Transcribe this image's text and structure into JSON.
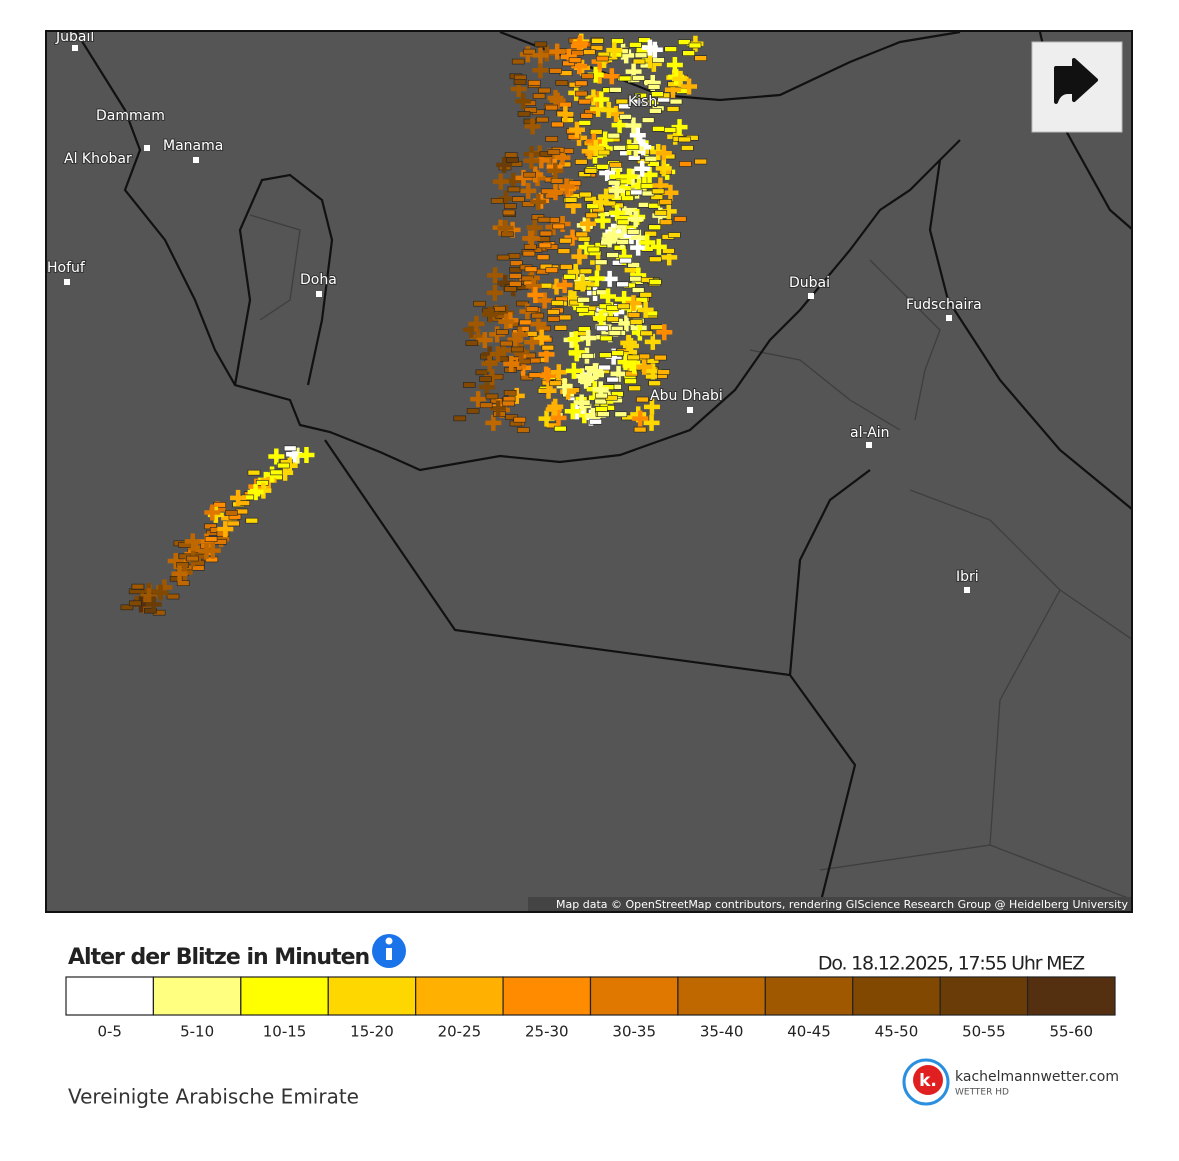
{
  "map": {
    "cities": [
      "Jubail",
      "Dammam",
      "Al Khobar",
      "Manama",
      "Hofuf",
      "Doha",
      "Kish",
      "Dubai",
      "Fudschaira",
      "Abu Dhabi",
      "al-Ain",
      "Ibri"
    ],
    "attribution": "Map data © OpenStreetMap contributors, rendering GIScience Research Group @ Heidelberg University"
  },
  "legend": {
    "title": "Alter der Blitze in Minuten",
    "timestamp": "Do. 18.12.2025, 17:55 Uhr MEZ",
    "items": [
      {
        "label": "0-5",
        "color": "#ffffff"
      },
      {
        "label": "5-10",
        "color": "#ffff80"
      },
      {
        "label": "10-15",
        "color": "#ffff00"
      },
      {
        "label": "15-20",
        "color": "#ffd700"
      },
      {
        "label": "20-25",
        "color": "#ffb000"
      },
      {
        "label": "25-30",
        "color": "#ff8c00"
      },
      {
        "label": "30-35",
        "color": "#e07800"
      },
      {
        "label": "35-40",
        "color": "#c06800"
      },
      {
        "label": "40-45",
        "color": "#a05800"
      },
      {
        "label": "45-50",
        "color": "#804800"
      },
      {
        "label": "50-55",
        "color": "#6a3c08"
      },
      {
        "label": "55-60",
        "color": "#553010"
      }
    ]
  },
  "footer": {
    "region": "Vereinigte Arabische Emirate",
    "logo": "k.",
    "brand": "kachelmannwetter.com",
    "brand_sub": "WETTER HD"
  }
}
